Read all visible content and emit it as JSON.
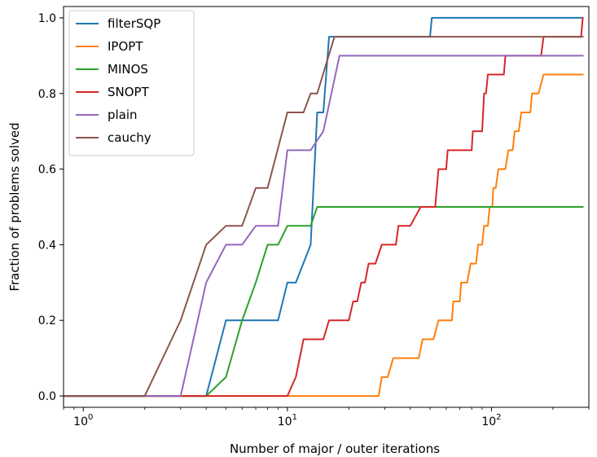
{
  "chart_data": {
    "type": "line",
    "title": "",
    "xlabel": "Number of major / outer iterations",
    "ylabel": "Fraction of problems solved",
    "xscale": "log",
    "xlim": [
      0.8,
      300
    ],
    "ylim": [
      -0.03,
      1.03
    ],
    "grid": false,
    "legend_position": "top-left",
    "x_ticks": [
      {
        "value": 1,
        "label": "10",
        "exp": "0"
      },
      {
        "value": 10,
        "label": "10",
        "exp": "1"
      },
      {
        "value": 100,
        "label": "10",
        "exp": "2"
      }
    ],
    "y_ticks": [
      {
        "value": 0.0,
        "label": "0.0"
      },
      {
        "value": 0.2,
        "label": "0.2"
      },
      {
        "value": 0.4,
        "label": "0.4"
      },
      {
        "value": 0.6,
        "label": "0.6"
      },
      {
        "value": 0.8,
        "label": "0.8"
      },
      {
        "value": 1.0,
        "label": "1.0"
      }
    ],
    "series": [
      {
        "name": "filterSQP",
        "color": "#1f77b4",
        "points": [
          [
            0.8,
            0
          ],
          [
            4,
            0
          ],
          [
            5,
            0.2
          ],
          [
            9,
            0.2
          ],
          [
            10,
            0.3
          ],
          [
            11,
            0.3
          ],
          [
            13,
            0.4
          ],
          [
            14,
            0.75
          ],
          [
            15,
            0.75
          ],
          [
            16,
            0.95
          ],
          [
            50,
            0.95
          ],
          [
            51,
            1.0
          ],
          [
            280,
            1.0
          ]
        ]
      },
      {
        "name": "IPOPT",
        "color": "#ff7f0e",
        "points": [
          [
            0.8,
            0
          ],
          [
            28,
            0
          ],
          [
            29,
            0.05
          ],
          [
            31,
            0.05
          ],
          [
            33,
            0.1
          ],
          [
            44,
            0.1
          ],
          [
            46,
            0.15
          ],
          [
            52,
            0.15
          ],
          [
            55,
            0.2
          ],
          [
            64,
            0.2
          ],
          [
            65,
            0.25
          ],
          [
            70,
            0.25
          ],
          [
            71,
            0.3
          ],
          [
            76,
            0.3
          ],
          [
            79,
            0.35
          ],
          [
            84,
            0.35
          ],
          [
            86,
            0.4
          ],
          [
            90,
            0.4
          ],
          [
            92,
            0.45
          ],
          [
            96,
            0.45
          ],
          [
            98,
            0.5
          ],
          [
            101,
            0.5
          ],
          [
            102,
            0.55
          ],
          [
            105,
            0.55
          ],
          [
            108,
            0.6
          ],
          [
            117,
            0.6
          ],
          [
            121,
            0.65
          ],
          [
            127,
            0.65
          ],
          [
            130,
            0.7
          ],
          [
            136,
            0.7
          ],
          [
            140,
            0.75
          ],
          [
            155,
            0.75
          ],
          [
            158,
            0.8
          ],
          [
            170,
            0.8
          ],
          [
            180,
            0.85
          ],
          [
            280,
            0.85
          ]
        ]
      },
      {
        "name": "MINOS",
        "color": "#2ca02c",
        "points": [
          [
            0.8,
            0
          ],
          [
            4,
            0
          ],
          [
            5,
            0.05
          ],
          [
            6,
            0.2
          ],
          [
            7,
            0.3
          ],
          [
            8,
            0.4
          ],
          [
            9,
            0.4
          ],
          [
            10,
            0.45
          ],
          [
            13,
            0.45
          ],
          [
            14,
            0.5
          ],
          [
            280,
            0.5
          ]
        ]
      },
      {
        "name": "SNOPT",
        "color": "#d62728",
        "points": [
          [
            0.8,
            0
          ],
          [
            10,
            0
          ],
          [
            11,
            0.05
          ],
          [
            12,
            0.15
          ],
          [
            15,
            0.15
          ],
          [
            16,
            0.2
          ],
          [
            20,
            0.2
          ],
          [
            21,
            0.25
          ],
          [
            22,
            0.25
          ],
          [
            23,
            0.3
          ],
          [
            24,
            0.3
          ],
          [
            25,
            0.35
          ],
          [
            27,
            0.35
          ],
          [
            29,
            0.4
          ],
          [
            34,
            0.4
          ],
          [
            35,
            0.45
          ],
          [
            40,
            0.45
          ],
          [
            45,
            0.5
          ],
          [
            53,
            0.5
          ],
          [
            55,
            0.6
          ],
          [
            60,
            0.6
          ],
          [
            61,
            0.65
          ],
          [
            80,
            0.65
          ],
          [
            81,
            0.7
          ],
          [
            90,
            0.7
          ],
          [
            92,
            0.8
          ],
          [
            94,
            0.8
          ],
          [
            96,
            0.85
          ],
          [
            115,
            0.85
          ],
          [
            117,
            0.9
          ],
          [
            175,
            0.9
          ],
          [
            180,
            0.95
          ],
          [
            275,
            0.95
          ],
          [
            280,
            1.0
          ]
        ]
      },
      {
        "name": "plain",
        "color": "#9467bd",
        "points": [
          [
            0.8,
            0
          ],
          [
            3,
            0
          ],
          [
            4,
            0.3
          ],
          [
            5,
            0.4
          ],
          [
            6,
            0.4
          ],
          [
            7,
            0.45
          ],
          [
            9,
            0.45
          ],
          [
            10,
            0.65
          ],
          [
            13,
            0.65
          ],
          [
            15,
            0.7
          ],
          [
            18,
            0.9
          ],
          [
            280,
            0.9
          ]
        ]
      },
      {
        "name": "cauchy",
        "color": "#8c564b",
        "points": [
          [
            0.8,
            0
          ],
          [
            2,
            0
          ],
          [
            3,
            0.2
          ],
          [
            4,
            0.4
          ],
          [
            5,
            0.45
          ],
          [
            6,
            0.45
          ],
          [
            7,
            0.55
          ],
          [
            8,
            0.55
          ],
          [
            10,
            0.75
          ],
          [
            12,
            0.75
          ],
          [
            13,
            0.8
          ],
          [
            14,
            0.8
          ],
          [
            17,
            0.95
          ],
          [
            280,
            0.95
          ]
        ]
      }
    ]
  }
}
